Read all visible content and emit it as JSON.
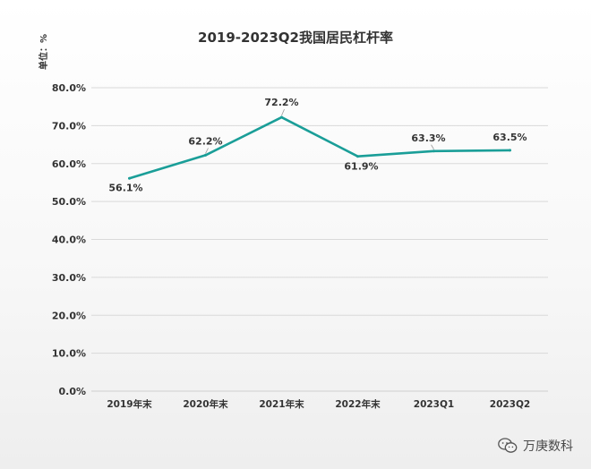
{
  "chart_data": {
    "type": "line",
    "title": "2019-2023Q2我国居民杠杆率",
    "unit_label": "单位：%",
    "categories": [
      "2019年末",
      "2020年末",
      "2021年末",
      "2022年末",
      "2023Q1",
      "2023Q2"
    ],
    "series": [
      {
        "name": "居民杠杆率",
        "values": [
          56.1,
          62.2,
          72.2,
          61.9,
          63.3,
          63.5
        ],
        "labels": [
          "56.1%",
          "62.2%",
          "72.2%",
          "61.9%",
          "63.3%",
          "63.5%"
        ],
        "color": "#1a9e98"
      }
    ],
    "ylim": [
      0,
      80
    ],
    "yticks": [
      "0.0%",
      "10.0%",
      "20.0%",
      "30.0%",
      "40.0%",
      "50.0%",
      "60.0%",
      "70.0%",
      "80.0%"
    ],
    "grid": true,
    "xlabel": "",
    "ylabel": ""
  },
  "watermark": {
    "text": "万庚数科",
    "icon": "wechat-icon"
  }
}
